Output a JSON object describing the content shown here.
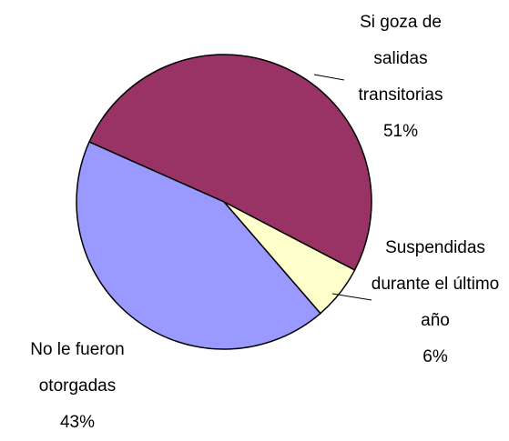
{
  "chart_data": {
    "type": "pie",
    "categories": [
      "Si goza de salidas transitorias",
      "Suspendidas durante el último año",
      "No le fueron otorgadas"
    ],
    "values": [
      51,
      6,
      43
    ],
    "value_labels": [
      "51%",
      "6%",
      "43%"
    ],
    "colors": [
      "#993366",
      "#ffffcc",
      "#9999ff"
    ]
  }
}
